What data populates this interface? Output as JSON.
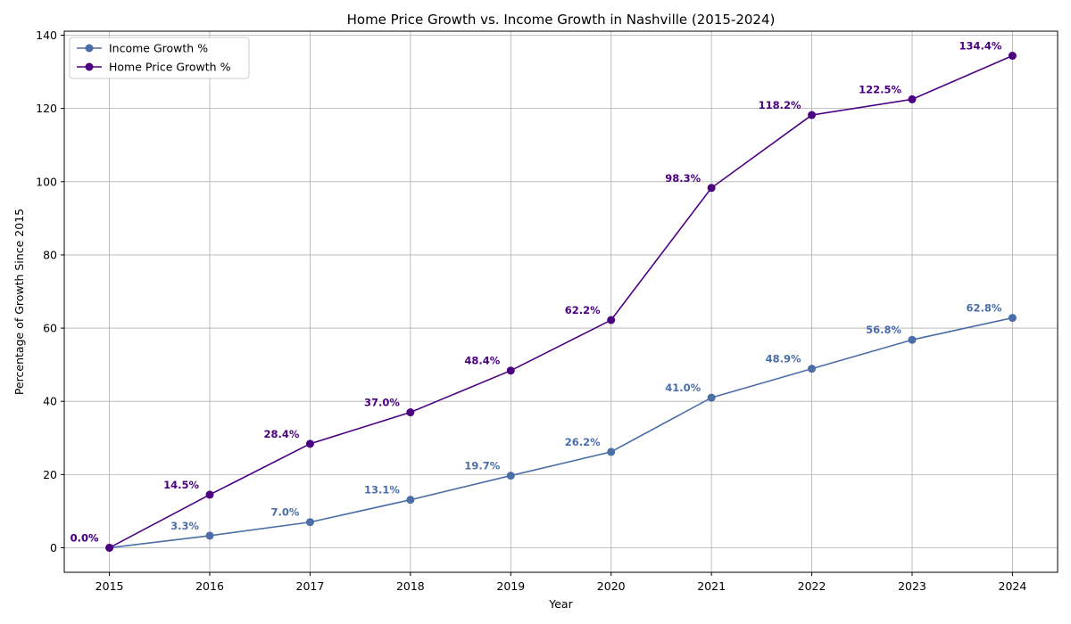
{
  "chart_data": {
    "type": "line",
    "title": "Home Price Growth vs. Income Growth in Nashville (2015-2024)",
    "xlabel": "Year",
    "ylabel": "Percentage of Growth Since 2015",
    "x": [
      2015,
      2016,
      2017,
      2018,
      2019,
      2020,
      2021,
      2022,
      2023,
      2024
    ],
    "xlim": [
      2014.55,
      2024.45
    ],
    "ylim": [
      -6.7,
      141.1
    ],
    "yticks": [
      0,
      20,
      40,
      60,
      80,
      100,
      120,
      140
    ],
    "grid": true,
    "legend_position": "top-left",
    "series": [
      {
        "name": "Income Growth %",
        "color": "#4c6ea8",
        "values": [
          0.0,
          3.3,
          7.0,
          13.1,
          19.7,
          26.2,
          41.0,
          48.9,
          56.8,
          62.8
        ],
        "labels": [
          "0.0%",
          "3.3%",
          "7.0%",
          "13.1%",
          "19.7%",
          "26.2%",
          "41.0%",
          "48.9%",
          "56.8%",
          "62.8%"
        ]
      },
      {
        "name": "Home Price Growth %",
        "color": "#4b0082",
        "values": [
          0.0,
          14.5,
          28.4,
          37.0,
          48.4,
          62.2,
          98.3,
          118.2,
          122.5,
          134.4
        ],
        "labels": [
          "0.0%",
          "14.5%",
          "28.4%",
          "37.0%",
          "48.4%",
          "62.2%",
          "98.3%",
          "118.2%",
          "122.5%",
          "134.4%"
        ]
      }
    ]
  }
}
